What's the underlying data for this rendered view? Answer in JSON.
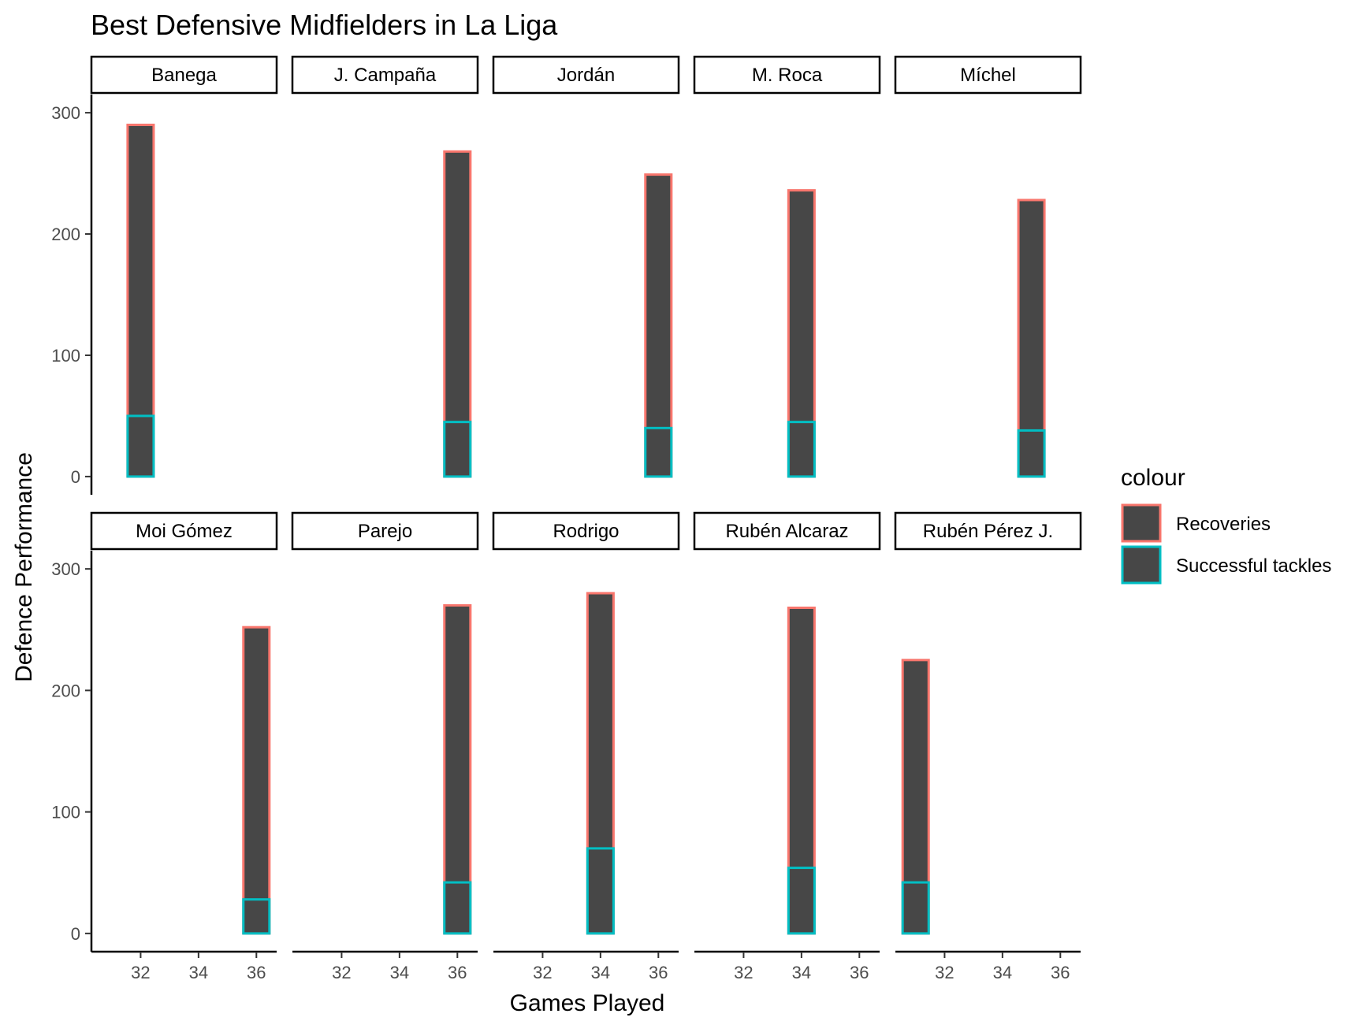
{
  "chart_data": {
    "type": "bar",
    "title": "Best Defensive Midfielders in La Liga",
    "xlabel": "Games Played",
    "ylabel": "Defence Performance",
    "xlim": [
      30.3,
      36.7
    ],
    "ylim": [
      -15,
      315
    ],
    "x_ticks": [
      32,
      34,
      36
    ],
    "y_ticks": [
      0,
      100,
      200,
      300
    ],
    "bar_width": 0.9,
    "legend": {
      "title": "colour",
      "position": "right",
      "entries": [
        {
          "label": "Recoveries",
          "color": "#F8766D"
        },
        {
          "label": "Successful tackles",
          "color": "#00BFC4"
        }
      ]
    },
    "fill_color": "#474747",
    "panels": [
      {
        "player": "Banega",
        "games": 32,
        "recoveries": 290,
        "successful_tackles": 50
      },
      {
        "player": "J. Campaña",
        "games": 36,
        "recoveries": 268,
        "successful_tackles": 45
      },
      {
        "player": "Jordán",
        "games": 36,
        "recoveries": 249,
        "successful_tackles": 40
      },
      {
        "player": "M. Roca",
        "games": 34,
        "recoveries": 236,
        "successful_tackles": 45
      },
      {
        "player": "Míchel",
        "games": 35,
        "recoveries": 228,
        "successful_tackles": 38
      },
      {
        "player": "Moi Gómez",
        "games": 36,
        "recoveries": 252,
        "successful_tackles": 28
      },
      {
        "player": "Parejo",
        "games": 36,
        "recoveries": 270,
        "successful_tackles": 42
      },
      {
        "player": "Rodrigo",
        "games": 34,
        "recoveries": 280,
        "successful_tackles": 70
      },
      {
        "player": "Rubén Alcaraz",
        "games": 34,
        "recoveries": 268,
        "successful_tackles": 54
      },
      {
        "player": "Rubén Pérez J.",
        "games": 31,
        "recoveries": 225,
        "successful_tackles": 42
      }
    ]
  }
}
